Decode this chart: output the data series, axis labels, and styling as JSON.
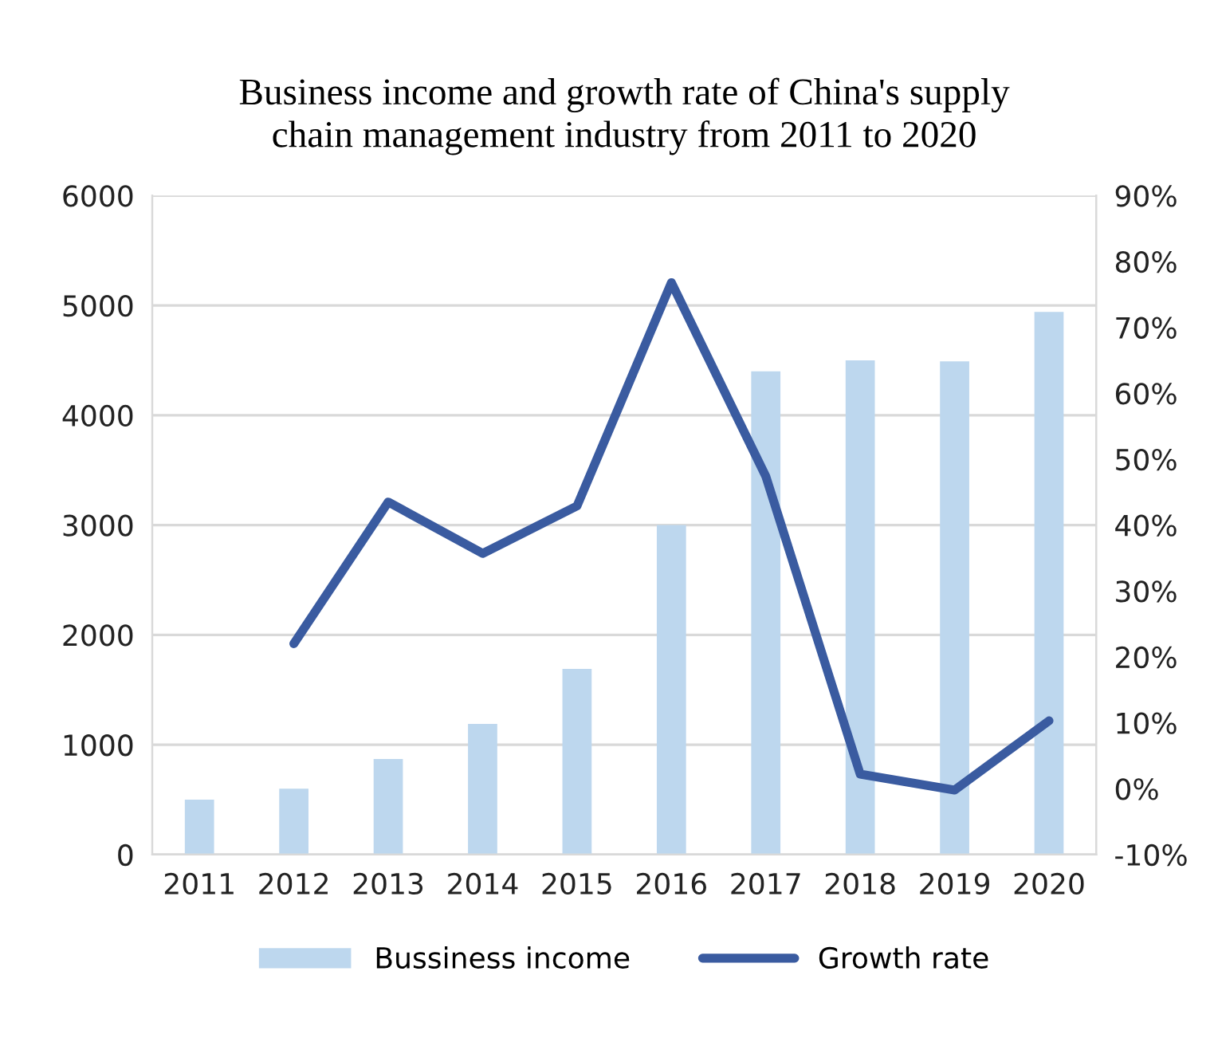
{
  "chart_data": {
    "type": "bar",
    "title": "Business income and growth rate of China's supply\nchain management industry from 2011 to 2020",
    "categories": [
      "2011",
      "2012",
      "2013",
      "2014",
      "2015",
      "2016",
      "2017",
      "2018",
      "2019",
      "2020"
    ],
    "series": [
      {
        "name": "Bussiness income",
        "color": "#bdd7ee",
        "values": [
          500,
          600,
          870,
          1190,
          1690,
          3000,
          4400,
          4500,
          4490,
          4940
        ]
      },
      {
        "name": "Growth rate",
        "type": "line",
        "axis": "y2",
        "color": "#3a5ba0",
        "values": [
          null,
          22.0,
          43.5,
          35.7,
          42.9,
          76.8,
          47.4,
          2.2,
          -0.2,
          10.3
        ]
      }
    ],
    "ylim": [
      0,
      6000
    ],
    "yticks": [
      0,
      1000,
      2000,
      3000,
      4000,
      5000,
      6000
    ],
    "y2lim": [
      -10,
      90
    ],
    "y2ticks": [
      {
        "value": -10,
        "label": "-10%"
      },
      {
        "value": 0,
        "label": "0%"
      },
      {
        "value": 10,
        "label": "10%"
      },
      {
        "value": 20,
        "label": "20%"
      },
      {
        "value": 30,
        "label": "30%"
      },
      {
        "value": 40,
        "label": "40%"
      },
      {
        "value": 50,
        "label": "50%"
      },
      {
        "value": 60,
        "label": "60%"
      },
      {
        "value": 70,
        "label": "70%"
      },
      {
        "value": 80,
        "label": "80%"
      },
      {
        "value": 90,
        "label": "90%"
      }
    ],
    "grid": "y",
    "legend": "bottom",
    "marker": "none",
    "line_style": "solid"
  }
}
